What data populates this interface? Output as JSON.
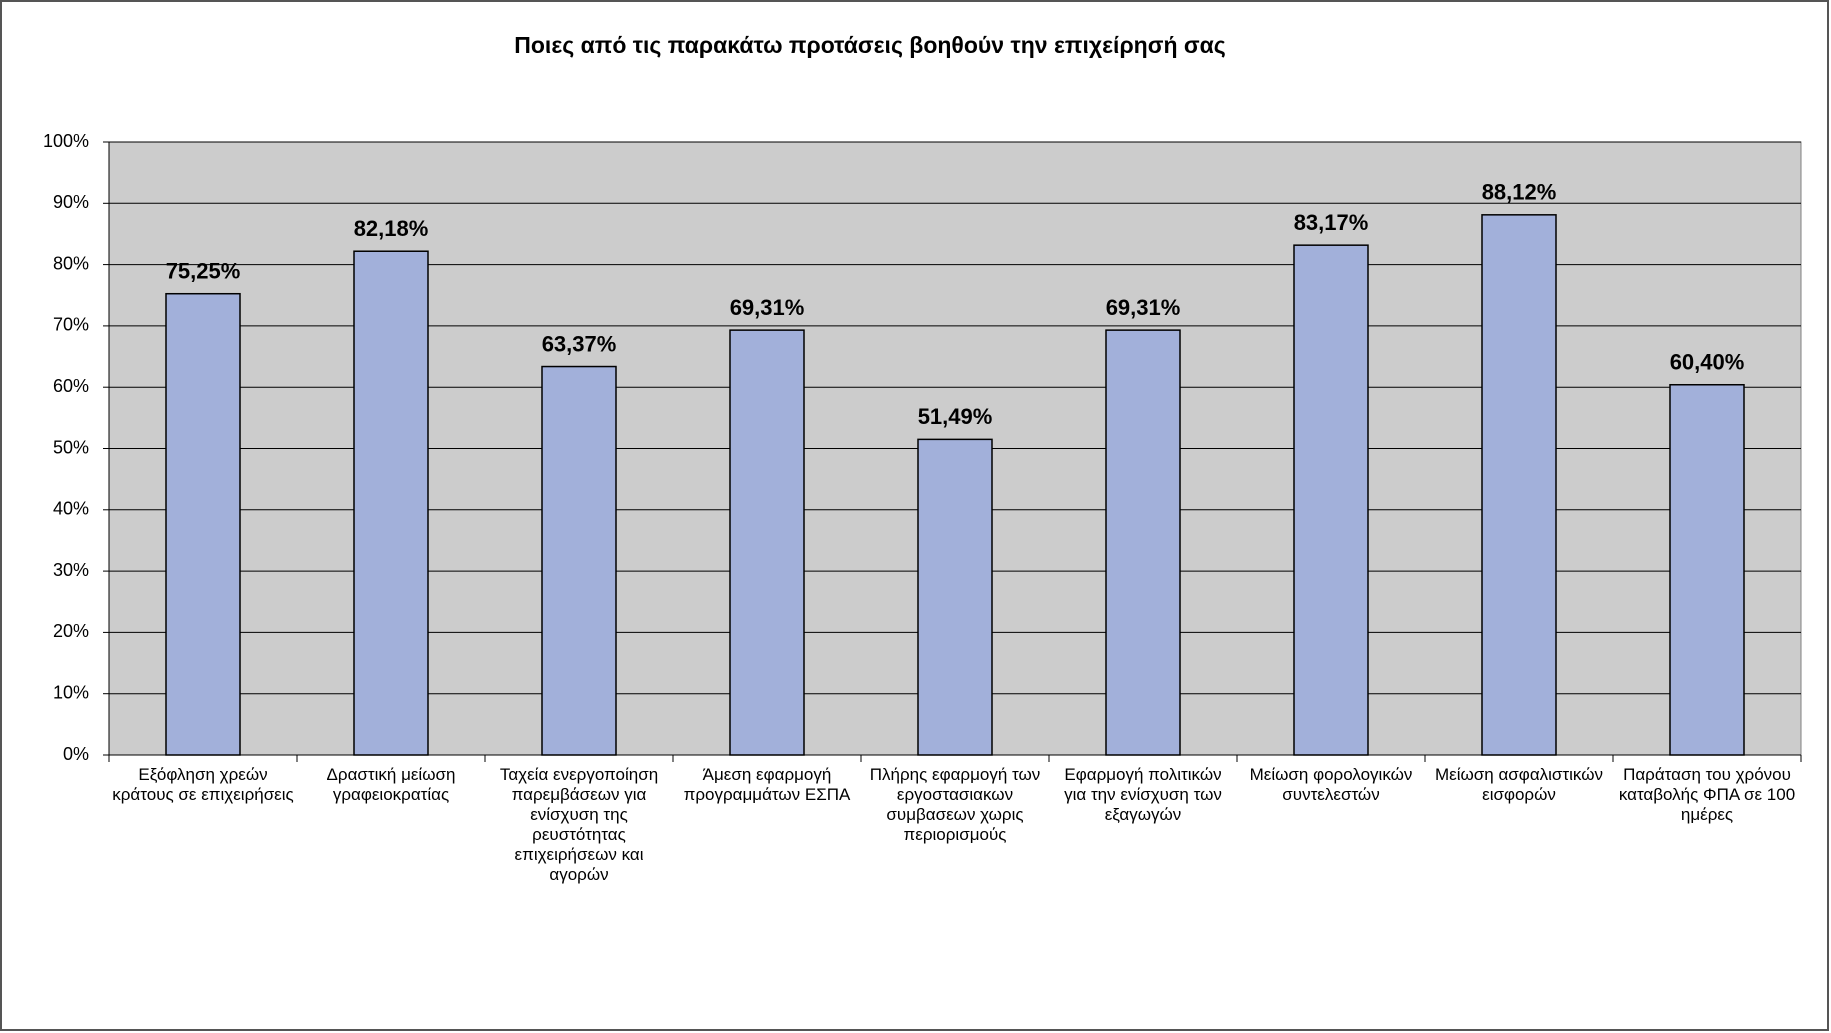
{
  "chart_data": {
    "type": "bar",
    "title": "Ποιες από τις παρακάτω προτάσεις βοηθούν την επιχείρησή σας",
    "categories": [
      "Εξόφληση χρεών κράτους σε επιχειρήσεις",
      "Δραστική μείωση γραφειοκρατίας",
      "Ταχεία ενεργοποίηση παρεμβάσεων για ενίσχυση της ρευστότητας επιχειρήσεων και αγορών",
      "Άμεση εφαρμογή προγραμμάτων ΕΣΠΑ",
      "Πλήρης εφαρμογή των εργοστασιακων συμβασεων χωρις περιορισμούς",
      "Εφαρμογή πολιτικών για την ενίσχυση των εξαγωγών",
      "Μείωση φορολογικών συντελεστών",
      "Μείωση ασφαλιστικών εισφορών",
      "Παράταση του χρόνου καταβολής ΦΠΑ σε 100 ημέρες"
    ],
    "values": [
      75.25,
      82.18,
      63.37,
      69.31,
      51.49,
      69.31,
      83.17,
      88.12,
      60.4
    ],
    "value_labels": [
      "75,25%",
      "82,18%",
      "63,37%",
      "69,31%",
      "51,49%",
      "69,31%",
      "83,17%",
      "88,12%",
      "60,40%"
    ],
    "color": "#a2b0da",
    "ylim": [
      0,
      100
    ],
    "yticks": [
      {
        "value": 0,
        "label": "0%"
      },
      {
        "value": 10,
        "label": "10%"
      },
      {
        "value": 20,
        "label": "20%"
      },
      {
        "value": 30,
        "label": "30%"
      },
      {
        "value": 40,
        "label": "40%"
      },
      {
        "value": 50,
        "label": "50%"
      },
      {
        "value": 60,
        "label": "60%"
      },
      {
        "value": 70,
        "label": "70%"
      },
      {
        "value": 80,
        "label": "80%"
      },
      {
        "value": 90,
        "label": "90%"
      },
      {
        "value": 100,
        "label": "100%"
      }
    ],
    "grid": true
  }
}
